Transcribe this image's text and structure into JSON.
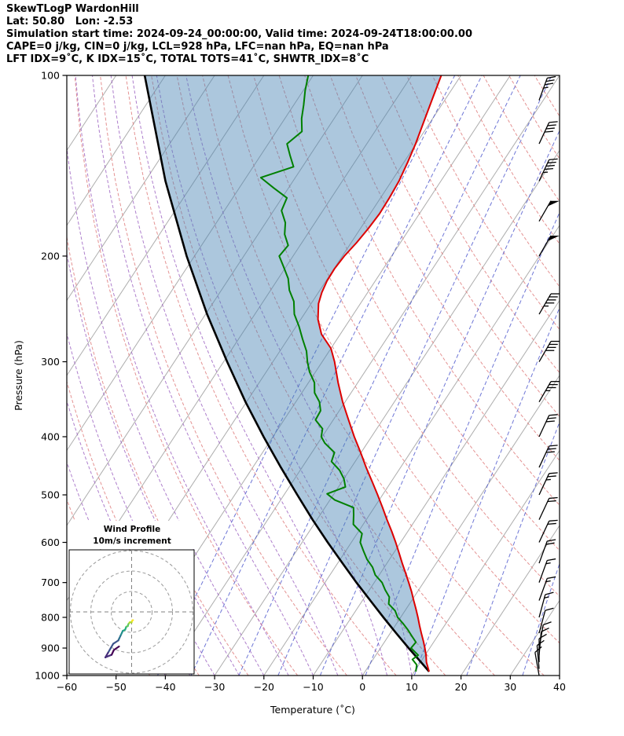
{
  "header": {
    "line1": "SkewTLogP WardonHill",
    "line2": "Lat: 50.80   Lon: -2.53",
    "line3": "Simulation start time: 2024-09-24_00:00:00, Valid time: 2024-09-24T18:00:00.00",
    "line4": "CAPE=0 j/kg, CIN=0 j/kg, LCL=928 hPa, LFC=nan hPa, EQ=nan hPa",
    "line5": "LFT IDX=9˚C, K IDX=15˚C, TOTAL TOTS=41˚C, SHWTR_IDX=8˚C"
  },
  "axes": {
    "xlabel": "Temperature (˚C)",
    "ylabel": "Pressure (hPa)",
    "temp_ticks": [
      -60,
      -50,
      -40,
      -30,
      -20,
      -10,
      0,
      10,
      20,
      30,
      40
    ],
    "temp_tick_labels": [
      "−60",
      "−50",
      "−40",
      "−30",
      "−20",
      "−10",
      "0",
      "10",
      "20",
      "30",
      "40"
    ],
    "pressure_ticks": [
      100,
      200,
      300,
      400,
      500,
      600,
      700,
      800,
      900,
      1000
    ],
    "pressure_tick_labels": [
      "100",
      "200",
      "300",
      "400",
      "500",
      "600",
      "700",
      "800",
      "900",
      "1000"
    ]
  },
  "inset": {
    "title_line1": "Wind Profile",
    "title_line2": "10m/s increment",
    "rings_ms": [
      10,
      20,
      30
    ]
  },
  "colors": {
    "temperature": "#dd0000",
    "dewpoint": "#008000",
    "parcel": "#000000",
    "shaded_area": "#4682b4",
    "isotherm": "#adadad",
    "dry_adiabat": "#e08080",
    "moist_adiabat": "#9a5fc0",
    "mixing_ratio": "#4a55cc",
    "barb": "#000000",
    "hodograph_palette": [
      "#440154",
      "#472d7b",
      "#3b528b",
      "#2c728e",
      "#21918c",
      "#28ae80",
      "#5ec962",
      "#addc30",
      "#fde725"
    ]
  },
  "chart_data": {
    "type": "skewt-logp",
    "title": "SkewTLogP WardonHill",
    "station": {
      "name": "WardonHill",
      "lat": 50.8,
      "lon": -2.53
    },
    "times": {
      "simulation_start": "2024-09-24_00:00:00",
      "valid": "2024-09-24T18:00:00.00"
    },
    "indices": {
      "CAPE_j_kg": 0,
      "CIN_j_kg": 0,
      "LCL_hPa": 928,
      "LFC_hPa": "nan",
      "EQ_hPa": "nan",
      "LFT_IDX_C": 9,
      "K_IDX_C": 15,
      "TOTAL_TOTS_C": 41,
      "SHWTR_IDX_C": 8
    },
    "axis": {
      "temp_range_C": [
        -60,
        40
      ],
      "pressure_range_hPa": [
        100,
        1000
      ],
      "skew_C_per_decade": 80
    },
    "temperature_profile": {
      "pressure_hPa": [
        985,
        950,
        925,
        900,
        875,
        850,
        825,
        800,
        775,
        750,
        725,
        700,
        675,
        650,
        625,
        600,
        575,
        550,
        525,
        500,
        475,
        450,
        425,
        400,
        375,
        350,
        325,
        300,
        285,
        270,
        255,
        240,
        230,
        220,
        210,
        200,
        190,
        180,
        170,
        160,
        150,
        140,
        130,
        120,
        110,
        100
      ],
      "temp_C": [
        13.0,
        11.2,
        10.2,
        9.0,
        7.7,
        6.3,
        4.9,
        3.5,
        2.0,
        0.4,
        -1.2,
        -3.0,
        -4.9,
        -6.9,
        -8.9,
        -11.0,
        -13.3,
        -15.8,
        -18.3,
        -21.0,
        -23.9,
        -27.0,
        -30.1,
        -33.5,
        -36.9,
        -40.5,
        -44.0,
        -47.5,
        -50.0,
        -53.8,
        -56.5,
        -58.5,
        -59.3,
        -59.8,
        -59.9,
        -59.6,
        -58.9,
        -58.4,
        -58.1,
        -58.2,
        -58.5,
        -59.2,
        -60.1,
        -61.3,
        -62.6,
        -64.0
      ]
    },
    "dewpoint_profile": {
      "pressure_hPa": [
        985,
        960,
        940,
        925,
        900,
        880,
        860,
        840,
        820,
        800,
        780,
        760,
        740,
        720,
        700,
        680,
        660,
        640,
        620,
        600,
        580,
        560,
        540,
        525,
        510,
        498,
        485,
        470,
        455,
        440,
        425,
        410,
        400,
        388,
        375,
        362,
        350,
        338,
        325,
        312,
        300,
        288,
        275,
        262,
        250,
        238,
        228,
        218,
        208,
        200,
        192,
        184,
        176,
        168,
        160,
        154,
        148,
        142,
        136,
        130,
        124,
        118,
        112,
        106,
        100
      ],
      "temp_C": [
        10.3,
        9.6,
        8.0,
        8.6,
        6.2,
        6.4,
        4.8,
        3.2,
        1.4,
        -0.6,
        -2.0,
        -4.2,
        -5.0,
        -6.8,
        -8.4,
        -10.8,
        -12.4,
        -14.6,
        -16.4,
        -18.2,
        -19.0,
        -22.0,
        -23.2,
        -24.2,
        -29.0,
        -31.4,
        -28.6,
        -30.0,
        -32.0,
        -34.8,
        -35.4,
        -38.6,
        -40.2,
        -41.0,
        -43.6,
        -43.8,
        -45.2,
        -47.4,
        -48.8,
        -51.2,
        -53.0,
        -54.6,
        -57.0,
        -59.4,
        -62.0,
        -63.8,
        -66.2,
        -68.0,
        -70.6,
        -72.8,
        -72.4,
        -74.6,
        -76.0,
        -78.4,
        -79.0,
        -83.0,
        -87.0,
        -81.8,
        -84.0,
        -86.2,
        -84.8,
        -86.6,
        -88.0,
        -89.6,
        -91.0
      ]
    },
    "parcel_profile": {
      "pressure_hPa": [
        985,
        950,
        900,
        850,
        800,
        750,
        700,
        650,
        600,
        550,
        500,
        450,
        400,
        350,
        300,
        250,
        200,
        150,
        100
      ],
      "temp_C": [
        13.0,
        10.1,
        5.7,
        1.2,
        -3.5,
        -8.4,
        -13.6,
        -19.0,
        -24.8,
        -30.9,
        -37.3,
        -44.3,
        -51.9,
        -60.2,
        -69.3,
        -79.7,
        -91.6,
        -105.9,
        -124.2
      ]
    },
    "wind_profile_kt": {
      "pressure_hPa": [
        1000,
        975,
        950,
        925,
        900,
        850,
        800,
        750,
        700,
        650,
        600,
        550,
        500,
        450,
        400,
        350,
        300,
        250,
        200,
        175,
        150,
        130,
        110
      ],
      "speed_kt": [
        8,
        8,
        10,
        10,
        10,
        12,
        14,
        15,
        16,
        18,
        20,
        22,
        25,
        28,
        30,
        35,
        40,
        45,
        50,
        50,
        45,
        40,
        35
      ],
      "direction_deg": [
        350,
        355,
        0,
        5,
        10,
        15,
        15,
        20,
        20,
        20,
        25,
        25,
        25,
        25,
        25,
        30,
        30,
        30,
        30,
        30,
        25,
        25,
        20
      ]
    },
    "background": {
      "isotherms_C": {
        "min": -130,
        "max": 40,
        "step": 10
      },
      "dry_adiabats_theta_K": [
        230,
        240,
        250,
        260,
        270,
        280,
        290,
        300,
        310,
        320,
        330,
        340,
        350,
        360,
        370,
        380,
        390,
        400,
        410,
        420,
        430,
        440
      ],
      "moist_adiabats_start_C": [
        -40,
        -35,
        -30,
        -25,
        -20,
        -15,
        -10,
        -5,
        0,
        5,
        10
      ],
      "mixing_ratio_g_kg": [
        0.1,
        0.2,
        0.5,
        1,
        2,
        4,
        8,
        16,
        32
      ]
    }
  }
}
